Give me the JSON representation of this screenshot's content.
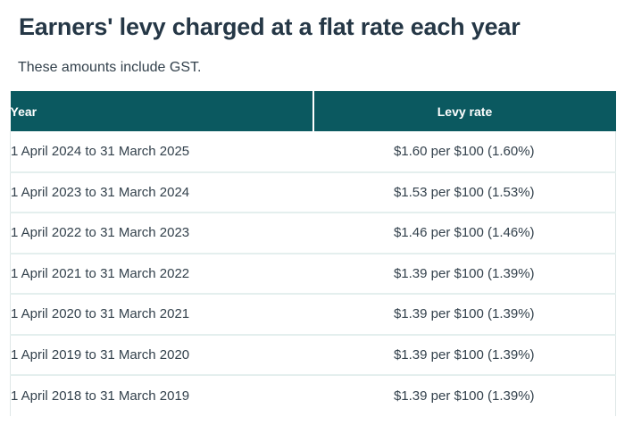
{
  "header": {
    "title": "Earners' levy charged at a flat rate each year",
    "subtitle": "These amounts include GST."
  },
  "table": {
    "columns": [
      "Year",
      "Levy rate"
    ],
    "rows": [
      {
        "year": "1 April 2024 to 31 March 2025",
        "rate": "$1.60 per $100 (1.60%)"
      },
      {
        "year": "1 April 2023 to 31 March 2024",
        "rate": "$1.53 per $100 (1.53%)"
      },
      {
        "year": "1 April 2022 to 31 March 2023",
        "rate": "$1.46 per $100 (1.46%)"
      },
      {
        "year": "1 April 2021 to 31 March 2022",
        "rate": "$1.39 per $100 (1.39%)"
      },
      {
        "year": "1 April 2020 to 31 March 2021",
        "rate": "$1.39 per $100 (1.39%)"
      },
      {
        "year": "1 April 2019 to 31 March 2020",
        "rate": "$1.39 per $100 (1.39%)"
      },
      {
        "year": "1 April 2018 to 31 March 2019",
        "rate": "$1.39 per $100 (1.39%)"
      }
    ]
  },
  "colors": {
    "header_background": "#0b5960",
    "header_text": "#ffffff",
    "heading_text": "#253746",
    "body_text": "#33414c",
    "row_divider": "#e4efee",
    "table_border": "#dfe7e7",
    "page_background": "#ffffff"
  }
}
